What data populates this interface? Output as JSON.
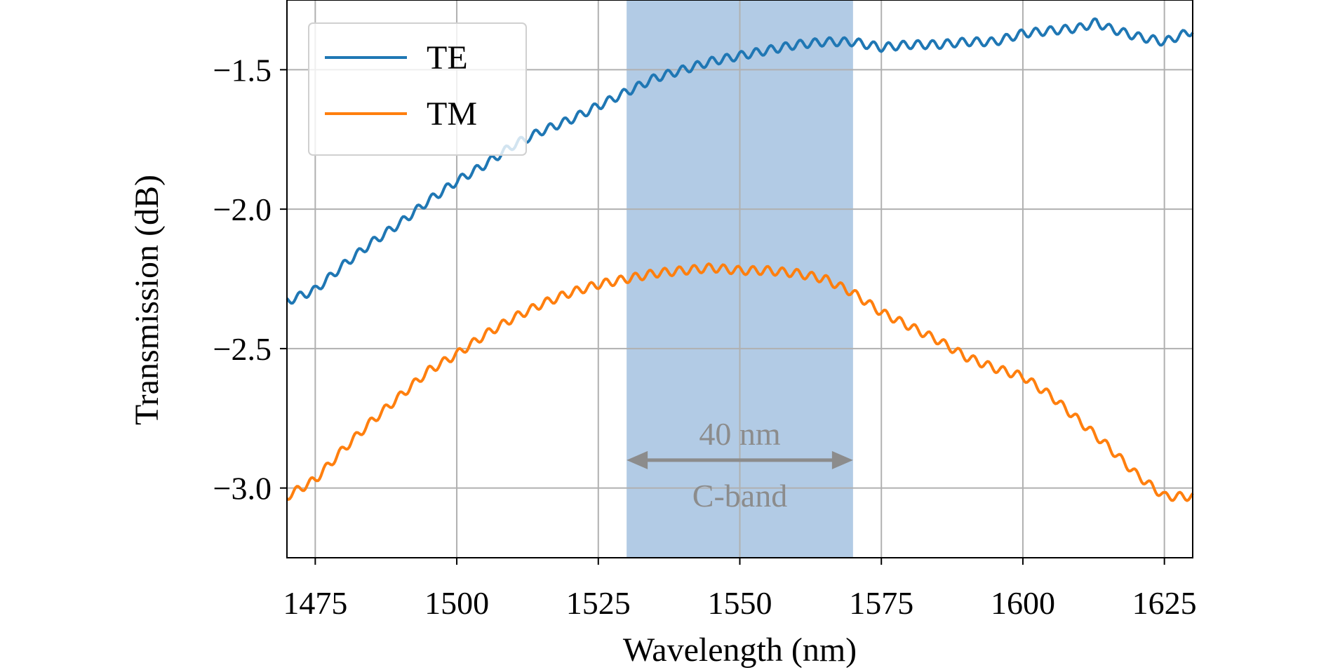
{
  "chart_data": {
    "type": "line",
    "title": "",
    "xlabel": "Wavelength (nm)",
    "ylabel": "Transmission (dB)",
    "xlim": [
      1470,
      1630
    ],
    "ylim": [
      -3.25,
      -1.25
    ],
    "xticks": [
      1475,
      1500,
      1525,
      1550,
      1575,
      1600,
      1625
    ],
    "yticks": [
      -1.5,
      -2.0,
      -2.5,
      -3.0
    ],
    "ytick_labels": [
      "−1.5",
      "−2.0",
      "−2.5",
      "−3.0"
    ],
    "grid": true,
    "legend": {
      "position": "top-left"
    },
    "shaded_region": {
      "x": [
        1530,
        1570
      ],
      "color": "#b2cbe5"
    },
    "annotations": {
      "span_label": "40 nm",
      "band_label": "C-band",
      "arrow_x": [
        1530,
        1570
      ],
      "arrow_y": -2.9,
      "color": "#8c8c8c"
    },
    "series": [
      {
        "name": "TE",
        "color": "#1f77b4",
        "ripple": 0.015,
        "x": [
          1470,
          1475,
          1480,
          1485,
          1490,
          1495,
          1500,
          1505,
          1510,
          1515,
          1520,
          1525,
          1530,
          1535,
          1540,
          1545,
          1550,
          1555,
          1560,
          1565,
          1570,
          1575,
          1580,
          1585,
          1590,
          1595,
          1600,
          1605,
          1610,
          1613,
          1615,
          1620,
          1625,
          1630
        ],
        "y": [
          -2.33,
          -2.29,
          -2.2,
          -2.12,
          -2.05,
          -1.97,
          -1.9,
          -1.84,
          -1.77,
          -1.72,
          -1.68,
          -1.63,
          -1.58,
          -1.53,
          -1.5,
          -1.47,
          -1.45,
          -1.43,
          -1.41,
          -1.4,
          -1.4,
          -1.42,
          -1.41,
          -1.41,
          -1.4,
          -1.4,
          -1.37,
          -1.36,
          -1.35,
          -1.33,
          -1.35,
          -1.38,
          -1.4,
          -1.36
        ]
      },
      {
        "name": "TM",
        "color": "#ff7f0e",
        "ripple": 0.015,
        "x": [
          1470,
          1475,
          1480,
          1485,
          1490,
          1495,
          1500,
          1505,
          1510,
          1515,
          1520,
          1525,
          1530,
          1535,
          1540,
          1545,
          1550,
          1555,
          1560,
          1565,
          1570,
          1575,
          1580,
          1585,
          1590,
          1595,
          1600,
          1605,
          1610,
          1615,
          1620,
          1625,
          1630
        ],
        "y": [
          -3.03,
          -2.97,
          -2.86,
          -2.76,
          -2.67,
          -2.58,
          -2.52,
          -2.45,
          -2.39,
          -2.34,
          -2.3,
          -2.27,
          -2.25,
          -2.23,
          -2.22,
          -2.21,
          -2.22,
          -2.22,
          -2.23,
          -2.25,
          -2.3,
          -2.37,
          -2.42,
          -2.47,
          -2.53,
          -2.57,
          -2.6,
          -2.67,
          -2.76,
          -2.85,
          -2.95,
          -3.03,
          -3.03
        ]
      }
    ]
  }
}
